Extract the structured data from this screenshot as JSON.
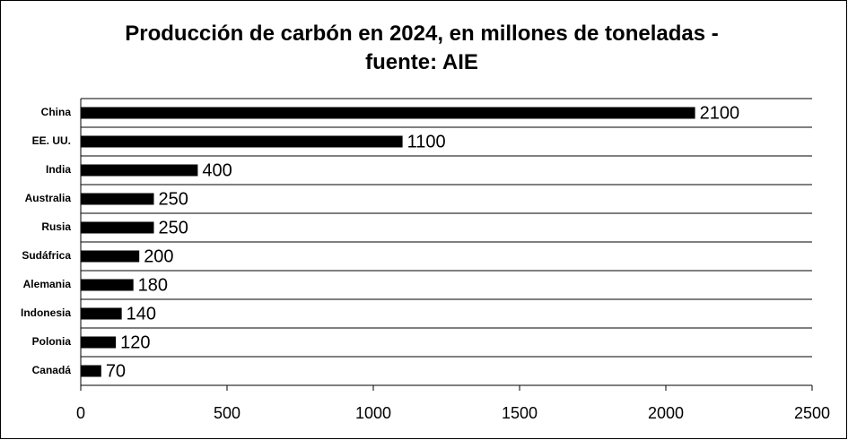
{
  "chart_data": {
    "type": "barh",
    "title": "Producción de carbón en 2024, en millones de toneladas - fuente: AIE",
    "categories": [
      "China",
      "EE. UU.",
      "India",
      "Australia",
      "Rusia",
      "Sudáfrica",
      "Alemania",
      "Indonesia",
      "Polonia",
      "Canadá"
    ],
    "values": [
      2100,
      1100,
      400,
      250,
      250,
      200,
      180,
      140,
      120,
      70
    ],
    "color": "#000000",
    "xlim": [
      0,
      2500
    ],
    "xticks": [
      0,
      500,
      1000,
      1500,
      2000,
      2500
    ],
    "grid": true
  }
}
